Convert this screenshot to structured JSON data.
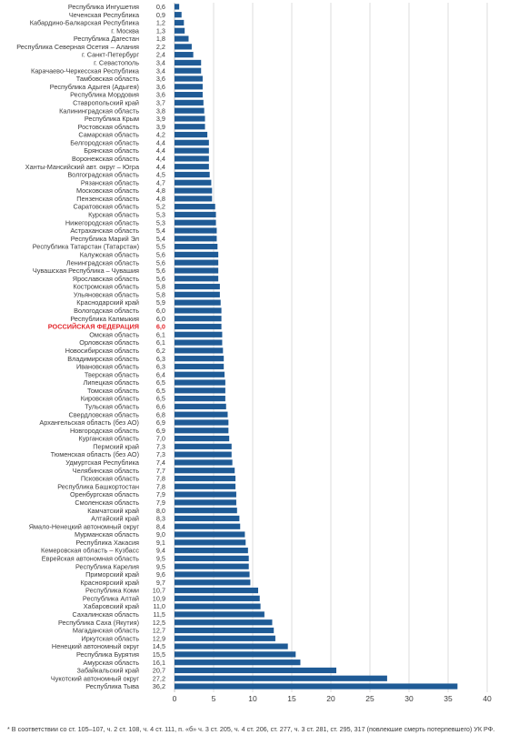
{
  "chart_data": {
    "type": "bar",
    "orientation": "horizontal",
    "bar_color": "#1f5b96",
    "highlight_color": "#e3262b",
    "label_color": "#3a3a3a",
    "grid": true,
    "xlim": [
      0,
      40
    ],
    "x_ticks": [
      "0",
      "5",
      "10",
      "15",
      "20",
      "25",
      "30",
      "35",
      "40"
    ],
    "categories": [
      "Республика Ингушетия",
      "Чеченская Республика",
      "Кабардино-Балкарская Республика",
      "г. Москва",
      "Республика Дагестан",
      "Республика Северная Осетия – Алания",
      "г. Санкт-Петербург",
      "г. Севастополь",
      "Карачаево-Черкесская Республика",
      "Тамбовская область",
      "Республика Адыгея (Адыгея)",
      "Республика Мордовия",
      "Ставропольский край",
      "Калининградская область",
      "Республика Крым",
      "Ростовская область",
      "Самарская область",
      "Белгородская область",
      "Брянская область",
      "Воронежская область",
      "Ханты-Мансийский авт. округ – Югра",
      "Волгоградская область",
      "Рязанская область",
      "Московская область",
      "Пензенская область",
      "Саратовская область",
      "Курская область",
      "Нижегородская область",
      "Астраханская область",
      "Республика Марий Эл",
      "Республика Татарстан (Татарстан)",
      "Калужская область",
      "Ленинградская область",
      "Чувашская Республика – Чувашия",
      "Ярославская область",
      "Костромская область",
      "Ульяновская область",
      "Краснодарский край",
      "Вологодская область",
      "Республика Калмыкия",
      "РОССИЙСКАЯ ФЕДЕРАЦИЯ",
      "Омская область",
      "Орловская область",
      "Новосибирская область",
      "Владимирская область",
      "Ивановская область",
      "Тверская область",
      "Липецкая область",
      "Томская область",
      "Кировская область",
      "Тульская область",
      "Свердловская область",
      "Архангельская область (без АО)",
      "Новгородская область",
      "Курганская область",
      "Пермский край",
      "Тюменская область (без АО)",
      "Удмуртская Республика",
      "Челябинская область",
      "Псковская область",
      "Республика Башкортостан",
      "Оренбургская область",
      "Смоленская область",
      "Камчатский край",
      "Алтайский край",
      "Ямало-Ненецкий автономный округ",
      "Мурманская область",
      "Республика Хакасия",
      "Кемеровская область – Кузбасс",
      "Еврейская автономная область",
      "Республика Карелия",
      "Приморский край",
      "Красноярский край",
      "Республика Коми",
      "Республика Алтай",
      "Хабаровский край",
      "Сахалинская область",
      "Республика Саха (Якутия)",
      "Магаданская область",
      "Иркутская область",
      "Ненецкий автономный округ",
      "Республика Бурятия",
      "Амурская область",
      "Забайкальский край",
      "Чукотский автономный округ",
      "Республика Тыва"
    ],
    "values": [
      0.6,
      0.9,
      1.2,
      1.3,
      1.8,
      2.2,
      2.4,
      3.4,
      3.4,
      3.6,
      3.6,
      3.6,
      3.7,
      3.8,
      3.9,
      3.9,
      4.2,
      4.4,
      4.4,
      4.4,
      4.4,
      4.5,
      4.7,
      4.8,
      4.8,
      5.2,
      5.3,
      5.3,
      5.4,
      5.4,
      5.5,
      5.6,
      5.6,
      5.6,
      5.6,
      5.8,
      5.8,
      5.9,
      6.0,
      6.0,
      6.0,
      6.1,
      6.1,
      6.2,
      6.3,
      6.3,
      6.4,
      6.5,
      6.5,
      6.5,
      6.6,
      6.8,
      6.9,
      6.9,
      7.0,
      7.3,
      7.3,
      7.4,
      7.7,
      7.8,
      7.8,
      7.9,
      7.9,
      8.0,
      8.3,
      8.4,
      9.0,
      9.1,
      9.4,
      9.5,
      9.5,
      9.6,
      9.7,
      10.7,
      10.9,
      11.0,
      11.5,
      12.5,
      12.7,
      12.9,
      14.5,
      15.5,
      16.1,
      20.7,
      27.2,
      36.2
    ],
    "value_labels": [
      "0,6",
      "0,9",
      "1,2",
      "1,3",
      "1,8",
      "2,2",
      "2,4",
      "3,4",
      "3,4",
      "3,6",
      "3,6",
      "3,6",
      "3,7",
      "3,8",
      "3,9",
      "3,9",
      "4,2",
      "4,4",
      "4,4",
      "4,4",
      "4,4",
      "4,5",
      "4,7",
      "4,8",
      "4,8",
      "5,2",
      "5,3",
      "5,3",
      "5,4",
      "5,4",
      "5,5",
      "5,6",
      "5,6",
      "5,6",
      "5,6",
      "5,8",
      "5,8",
      "5,9",
      "6,0",
      "6,0",
      "6,0",
      "6,1",
      "6,1",
      "6,2",
      "6,3",
      "6,3",
      "6,4",
      "6,5",
      "6,5",
      "6,5",
      "6,6",
      "6,8",
      "6,9",
      "6,9",
      "7,0",
      "7,3",
      "7,3",
      "7,4",
      "7,7",
      "7,8",
      "7,8",
      "7,9",
      "7,9",
      "8,0",
      "8,3",
      "8,4",
      "9,0",
      "9,1",
      "9,4",
      "9,5",
      "9,5",
      "9,6",
      "9,7",
      "10,7",
      "10,9",
      "11,0",
      "11,5",
      "12,5",
      "12,7",
      "12,9",
      "14,5",
      "15,5",
      "16,1",
      "20,7",
      "27,2",
      "36,2"
    ],
    "highlight_category": "РОССИЙСКАЯ ФЕДЕРАЦИЯ"
  },
  "footnote": "* В соответствии со ст. 105–107, ч. 2 ст. 108, ч. 4 ст. 111, п. «б» ч. 3 ст. 205, ч. 4 ст. 206, ст. 277, ч. 3 ст. 281, ст. 295, 317 (повлекшие смерть потерпевшего) УК РФ."
}
